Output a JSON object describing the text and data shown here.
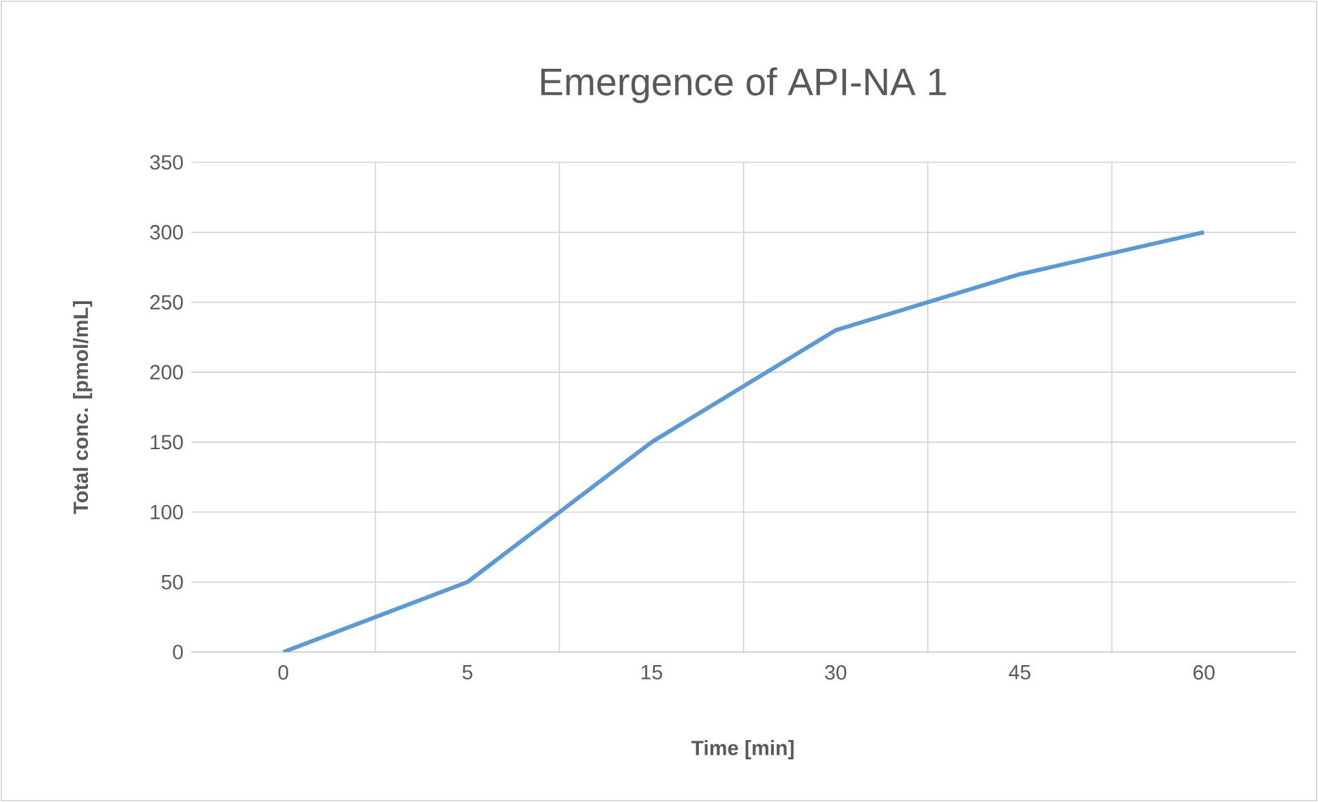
{
  "chart_data": {
    "type": "line",
    "title": "Emergence of API-NA 1",
    "xlabel": "Time [min]",
    "ylabel": "Total conc. [pmol/mL]",
    "categories": [
      "0",
      "5",
      "15",
      "30",
      "45",
      "60"
    ],
    "series": [
      {
        "color": "#5b9bd5",
        "values": [
          0,
          50,
          150,
          230,
          270,
          300
        ]
      }
    ],
    "ylim": [
      0,
      350
    ],
    "yticks": [
      0,
      50,
      100,
      150,
      200,
      250,
      300,
      350
    ],
    "grid": true,
    "marker": "none",
    "line_style": "solid"
  }
}
